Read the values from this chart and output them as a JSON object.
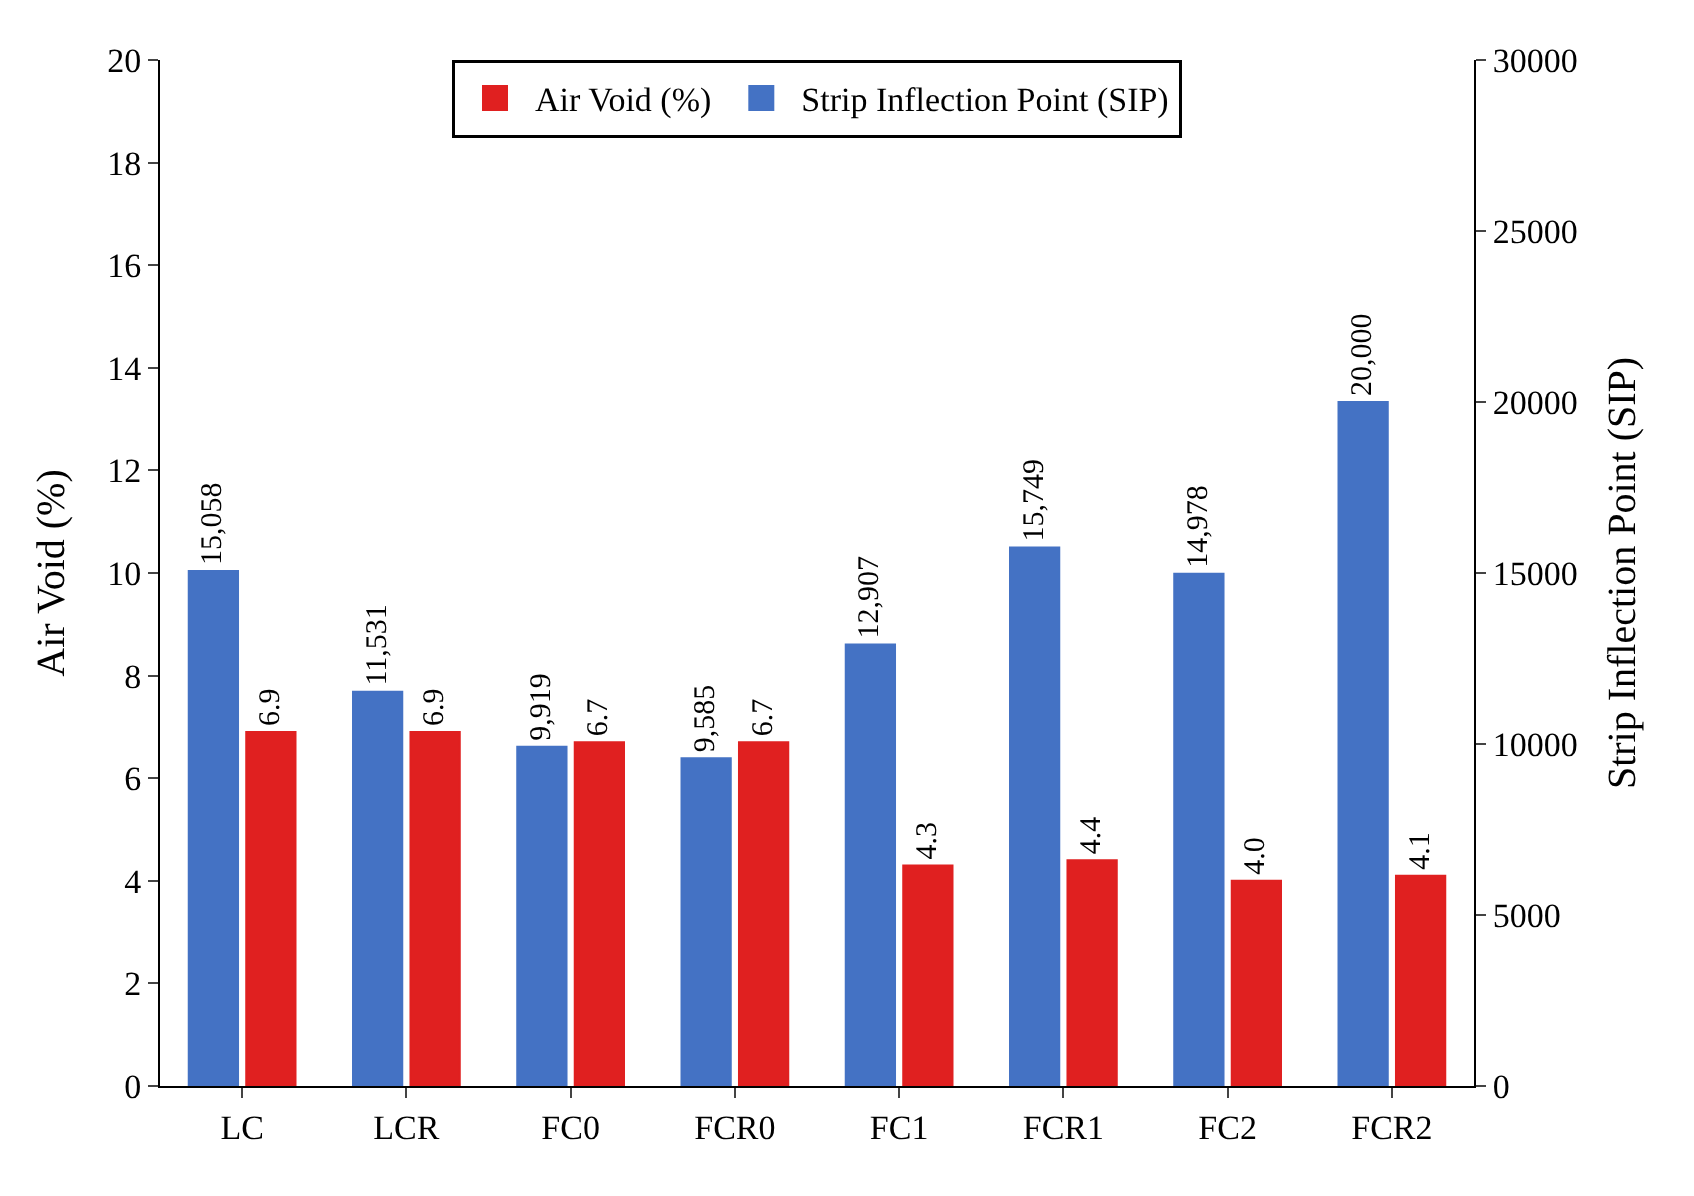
{
  "chart_data": {
    "type": "bar",
    "ylabel": "Air Void (%)",
    "y2label": "Strip Inflection Point (SIP)",
    "categories": [
      "LC",
      "LCR",
      "FC0",
      "FCR0",
      "FC1",
      "FCR1",
      "FC2",
      "FCR2"
    ],
    "series": [
      {
        "name": "Strip Inflection Point (SIP)",
        "color": "#4472c4",
        "axis": "y2",
        "values": [
          15058,
          11531,
          9919,
          9585,
          12907,
          15749,
          14978,
          20000
        ],
        "value_labels": [
          "15,058",
          "11,531",
          "9,919",
          "9,585",
          "12,907",
          "15,749",
          "14,978",
          "20,000"
        ]
      },
      {
        "name": "Air Void (%)",
        "color": "#e02020",
        "values": [
          6.9,
          6.9,
          6.7,
          6.7,
          4.3,
          4.4,
          4.0,
          4.1
        ],
        "value_labels": [
          "6.9",
          "6.9",
          "6.7",
          "6.7",
          "4.3",
          "4.4",
          "4.0",
          "4.1"
        ]
      }
    ],
    "ylim": [
      0,
      20
    ],
    "yticks": [
      0,
      2,
      4,
      6,
      8,
      10,
      12,
      14,
      16,
      18,
      20
    ],
    "y2lim": [
      0,
      30000
    ],
    "y2ticks": [
      0,
      5000,
      10000,
      15000,
      20000,
      25000,
      30000
    ],
    "legend": "top"
  }
}
